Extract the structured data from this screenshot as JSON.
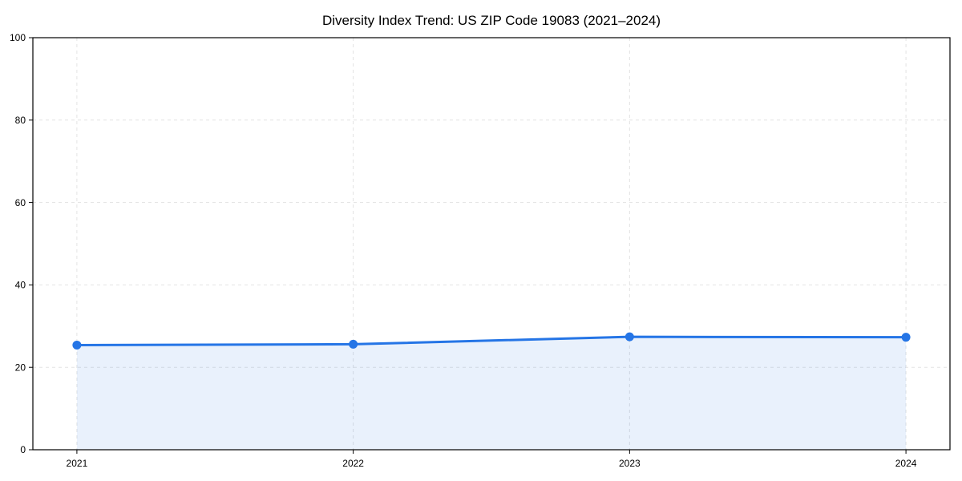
{
  "figure": {
    "background": "#ffffff"
  },
  "chart_data": {
    "type": "area",
    "title": "Diversity Index Trend: US ZIP Code 19083 (2021–2024)",
    "x": [
      "2021",
      "2022",
      "2023",
      "2024"
    ],
    "series": [
      {
        "name": "Diversity Index",
        "values": [
          25.4,
          25.6,
          27.4,
          27.3
        ]
      }
    ],
    "xlabel": "",
    "ylabel": "",
    "ylim": [
      0,
      100
    ],
    "yticks": [
      0,
      20,
      40,
      60,
      80,
      100
    ],
    "grid": true,
    "grid_style": "dashed",
    "legend": false,
    "colors": {
      "line": "#2575e6",
      "marker": "#2575e6",
      "fill": "#2575e6",
      "fill_opacity": 0.1,
      "grid": "#e3e3e3",
      "spine": "#000000",
      "text": "#000000",
      "background": "#ffffff"
    }
  }
}
